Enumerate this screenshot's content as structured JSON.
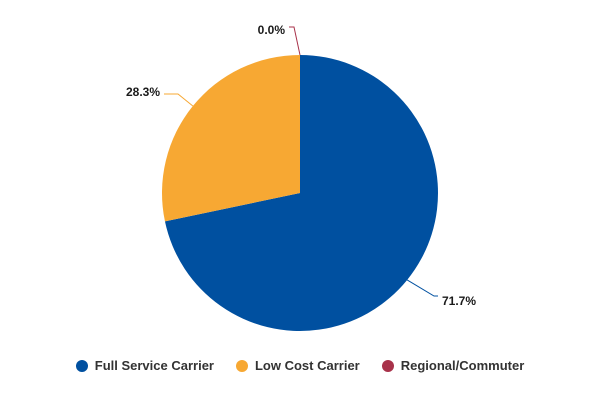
{
  "chart_data": {
    "type": "pie",
    "series": [
      {
        "name": "Full Service Carrier",
        "value": 71.7,
        "label": "71.7%",
        "color": "#0050a0"
      },
      {
        "name": "Low Cost Carrier",
        "value": 28.3,
        "label": "28.3%",
        "color": "#f7a833"
      },
      {
        "name": "Regional/Commuter",
        "value": 0.0,
        "label": "0.0%",
        "color": "#a8324a"
      }
    ],
    "legend": {
      "placement": "bottom",
      "entries": [
        "Full Service Carrier",
        "Low Cost Carrier",
        "Regional/Commuter"
      ]
    }
  }
}
